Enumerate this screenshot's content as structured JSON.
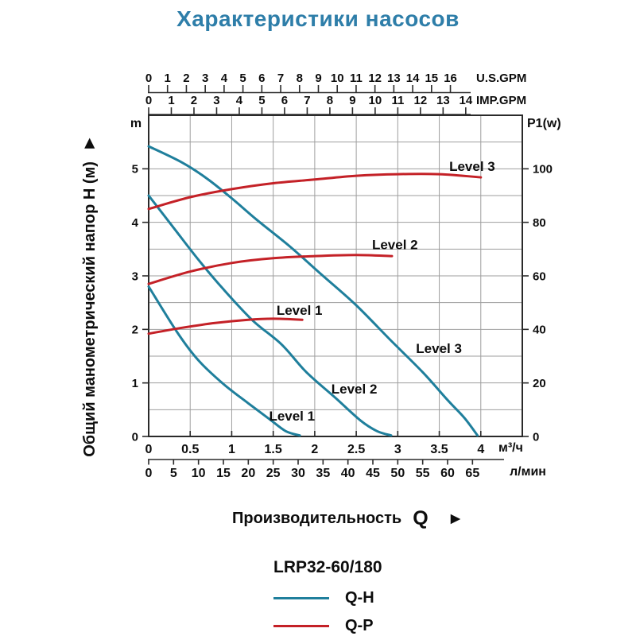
{
  "colors": {
    "qh": "#1f7f9c",
    "qp": "#c42127",
    "grid": "#9e9e9e",
    "axis": "#2a2a2a",
    "title": "#2e7ea9",
    "text": "#0d0d0d"
  },
  "legend": {
    "model": "LRP32-60/180",
    "items": [
      {
        "label": "Q-H",
        "color": "qh"
      },
      {
        "label": "Q-P",
        "color": "qp"
      }
    ]
  },
  "chart_data": {
    "type": "line",
    "title": "Характеристики насосов",
    "x_title": {
      "label": "Производительность",
      "symbol": "Q",
      "arrow": "►"
    },
    "axes": {
      "left": {
        "unit": "m",
        "title": "Общий манометрический напор Н (м)",
        "arrow": "►",
        "ticks": [
          0,
          1,
          2,
          3,
          4,
          5
        ],
        "range": [
          0,
          6
        ],
        "grid_step": 0.5
      },
      "right": {
        "unit": "P1(w)",
        "ticks": [
          0,
          20,
          40,
          60,
          80,
          100
        ],
        "range": [
          0,
          120
        ]
      },
      "us_gpm": {
        "unit": "U.S.GPM",
        "ticks": [
          0,
          1,
          2,
          3,
          4,
          5,
          6,
          7,
          8,
          9,
          10,
          11,
          12,
          13,
          14,
          15,
          16
        ]
      },
      "imp_gpm": {
        "unit": "IMP.GPM",
        "ticks": [
          0,
          1,
          2,
          3,
          4,
          5,
          6,
          7,
          8,
          9,
          10,
          11,
          12,
          13,
          14
        ]
      },
      "m3h": {
        "unit": "м³/ч",
        "ticks": [
          0,
          0.5,
          1,
          1.5,
          2,
          2.5,
          3,
          3.5,
          4
        ],
        "range": [
          0,
          4.5
        ],
        "grid_step": 0.5
      },
      "lmin": {
        "unit": "л/мин",
        "ticks": [
          0,
          5,
          10,
          15,
          20,
          25,
          30,
          35,
          40,
          45,
          50,
          55,
          60,
          65
        ]
      }
    },
    "series": [
      {
        "name": "Q-H Level 1",
        "group": "Q-H",
        "label": "Level 1",
        "color": "qh",
        "label_xy": [
          1.45,
          0.3
        ],
        "points": [
          [
            0,
            2.8
          ],
          [
            0.35,
            1.93
          ],
          [
            0.6,
            1.42
          ],
          [
            0.9,
            0.98
          ],
          [
            1.2,
            0.62
          ],
          [
            1.45,
            0.33
          ],
          [
            1.65,
            0.1
          ],
          [
            1.82,
            0.02
          ]
        ]
      },
      {
        "name": "Q-H Level 2",
        "group": "Q-H",
        "label": "Level 2",
        "color": "qh",
        "label_xy": [
          2.2,
          0.8
        ],
        "points": [
          [
            0,
            4.5
          ],
          [
            0.3,
            3.9
          ],
          [
            0.6,
            3.3
          ],
          [
            0.9,
            2.75
          ],
          [
            1.25,
            2.17
          ],
          [
            1.6,
            1.72
          ],
          [
            1.9,
            1.2
          ],
          [
            2.25,
            0.72
          ],
          [
            2.55,
            0.3
          ],
          [
            2.75,
            0.1
          ],
          [
            2.92,
            0.02
          ]
        ]
      },
      {
        "name": "Q-H Level 3",
        "group": "Q-H",
        "label": "Level 3",
        "color": "qh",
        "label_xy": [
          3.22,
          1.56
        ],
        "points": [
          [
            0,
            5.42
          ],
          [
            0.4,
            5.12
          ],
          [
            0.7,
            4.82
          ],
          [
            1.0,
            4.45
          ],
          [
            1.3,
            4.05
          ],
          [
            1.7,
            3.55
          ],
          [
            2.1,
            3.0
          ],
          [
            2.5,
            2.45
          ],
          [
            2.9,
            1.82
          ],
          [
            3.3,
            1.2
          ],
          [
            3.6,
            0.68
          ],
          [
            3.8,
            0.35
          ],
          [
            3.96,
            0.02
          ]
        ]
      },
      {
        "name": "Q-P Level 1",
        "group": "Q-P",
        "label": "Level 1",
        "color": "qp",
        "label_xy": [
          1.54,
          2.27
        ],
        "points": [
          [
            0,
            1.92
          ],
          [
            0.4,
            2.03
          ],
          [
            0.8,
            2.12
          ],
          [
            1.2,
            2.18
          ],
          [
            1.5,
            2.2
          ],
          [
            1.85,
            2.18
          ]
        ]
      },
      {
        "name": "Q-P Level 2",
        "group": "Q-P",
        "label": "Level 2",
        "color": "qp",
        "label_xy": [
          2.69,
          3.5
        ],
        "points": [
          [
            0,
            2.85
          ],
          [
            0.5,
            3.08
          ],
          [
            1.0,
            3.24
          ],
          [
            1.5,
            3.33
          ],
          [
            2.0,
            3.37
          ],
          [
            2.5,
            3.39
          ],
          [
            2.93,
            3.37
          ]
        ]
      },
      {
        "name": "Q-P Level 3",
        "group": "Q-P",
        "label": "Level 3",
        "color": "qp",
        "label_xy": [
          3.62,
          4.96
        ],
        "points": [
          [
            0,
            4.25
          ],
          [
            0.5,
            4.47
          ],
          [
            1.0,
            4.62
          ],
          [
            1.5,
            4.73
          ],
          [
            2.0,
            4.8
          ],
          [
            2.5,
            4.87
          ],
          [
            3.0,
            4.9
          ],
          [
            3.5,
            4.9
          ],
          [
            4.0,
            4.84
          ]
        ]
      }
    ]
  }
}
